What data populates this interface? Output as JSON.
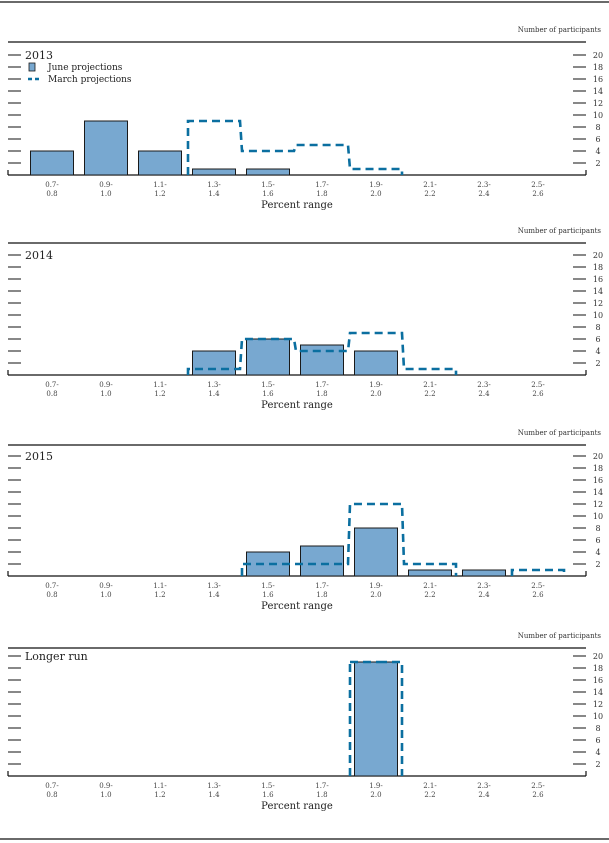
{
  "figure": {
    "unit_label": "Number of participants",
    "x_axis_title": "Percent range",
    "legend": {
      "june_label": "June projections",
      "march_label": "March projections"
    },
    "colors": {
      "june_fill": "#78a8d0",
      "june_stroke": "#1a1a1a",
      "march_stroke": "#0b6fa0"
    }
  },
  "chart_data": [
    {
      "type": "bar",
      "title": "2013",
      "xlabel": "Percent range",
      "ylabel": "Number of participants",
      "ylim": [
        0,
        20
      ],
      "yticks": [
        2,
        4,
        6,
        8,
        10,
        12,
        14,
        16,
        18,
        20
      ],
      "categories": [
        "0.7-0.8",
        "0.9-1.0",
        "1.1-1.2",
        "1.3-1.4",
        "1.5-1.6",
        "1.7-1.8",
        "1.9-2.0",
        "2.1-2.2",
        "2.3-2.4",
        "2.5-2.6"
      ],
      "series": [
        {
          "name": "June projections",
          "style": "bar",
          "values": [
            4,
            9,
            4,
            1,
            1,
            0,
            0,
            0,
            0,
            0
          ]
        },
        {
          "name": "March projections",
          "style": "dashed-step",
          "values": [
            0,
            0,
            0,
            9,
            4,
            5,
            1,
            0,
            0,
            0
          ]
        }
      ],
      "legend": "top-left"
    },
    {
      "type": "bar",
      "title": "2014",
      "xlabel": "Percent range",
      "ylabel": "Number of participants",
      "ylim": [
        0,
        20
      ],
      "yticks": [
        2,
        4,
        6,
        8,
        10,
        12,
        14,
        16,
        18,
        20
      ],
      "categories": [
        "0.7-0.8",
        "0.9-1.0",
        "1.1-1.2",
        "1.3-1.4",
        "1.5-1.6",
        "1.7-1.8",
        "1.9-2.0",
        "2.1-2.2",
        "2.3-2.4",
        "2.5-2.6"
      ],
      "series": [
        {
          "name": "June projections",
          "style": "bar",
          "values": [
            0,
            0,
            0,
            4,
            6,
            5,
            4,
            0,
            0,
            0
          ]
        },
        {
          "name": "March projections",
          "style": "dashed-step",
          "values": [
            0,
            0,
            0,
            1,
            6,
            4,
            7,
            1,
            0,
            0
          ]
        }
      ]
    },
    {
      "type": "bar",
      "title": "2015",
      "xlabel": "Percent range",
      "ylabel": "Number of participants",
      "ylim": [
        0,
        20
      ],
      "yticks": [
        2,
        4,
        6,
        8,
        10,
        12,
        14,
        16,
        18,
        20
      ],
      "categories": [
        "0.7-0.8",
        "0.9-1.0",
        "1.1-1.2",
        "1.3-1.4",
        "1.5-1.6",
        "1.7-1.8",
        "1.9-2.0",
        "2.1-2.2",
        "2.3-2.4",
        "2.5-2.6"
      ],
      "series": [
        {
          "name": "June projections",
          "style": "bar",
          "values": [
            0,
            0,
            0,
            0,
            4,
            5,
            8,
            1,
            1,
            0
          ]
        },
        {
          "name": "March projections",
          "style": "dashed-step",
          "values": [
            0,
            0,
            0,
            0,
            2,
            2,
            12,
            2,
            0,
            1
          ]
        }
      ]
    },
    {
      "type": "bar",
      "title": "Longer run",
      "xlabel": "Percent range",
      "ylabel": "Number of participants",
      "ylim": [
        0,
        20
      ],
      "yticks": [
        2,
        4,
        6,
        8,
        10,
        12,
        14,
        16,
        18,
        20
      ],
      "categories": [
        "0.7-0.8",
        "0.9-1.0",
        "1.1-1.2",
        "1.3-1.4",
        "1.5-1.6",
        "1.7-1.8",
        "1.9-2.0",
        "2.1-2.2",
        "2.3-2.4",
        "2.5-2.6"
      ],
      "series": [
        {
          "name": "June projections",
          "style": "bar",
          "values": [
            0,
            0,
            0,
            0,
            0,
            0,
            19,
            0,
            0,
            0
          ]
        },
        {
          "name": "March projections",
          "style": "dashed-step",
          "values": [
            0,
            0,
            0,
            0,
            0,
            0,
            19,
            0,
            0,
            0
          ]
        }
      ]
    }
  ]
}
